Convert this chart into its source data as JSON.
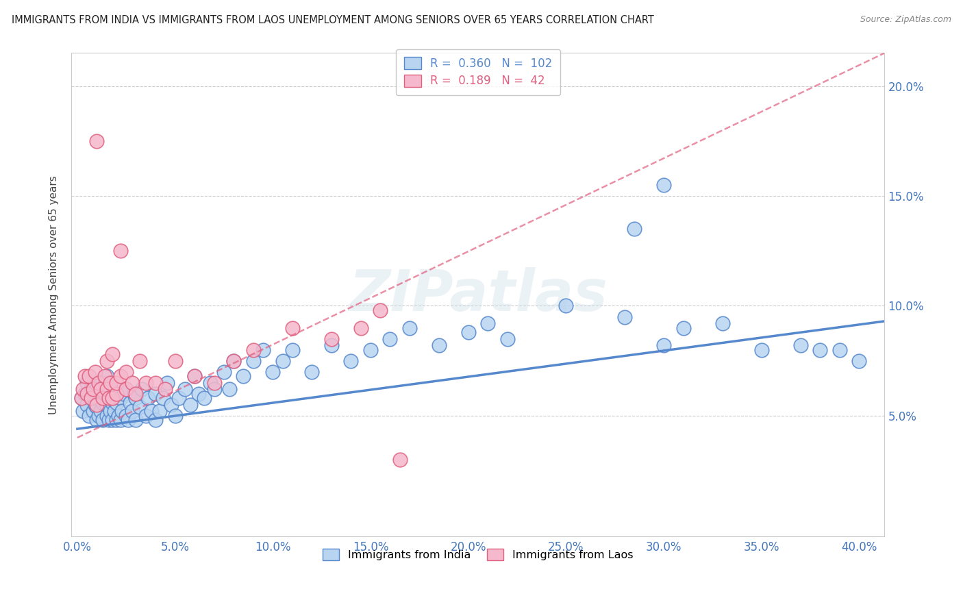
{
  "title": "IMMIGRANTS FROM INDIA VS IMMIGRANTS FROM LAOS UNEMPLOYMENT AMONG SENIORS OVER 65 YEARS CORRELATION CHART",
  "source": "Source: ZipAtlas.com",
  "ylabel": "Unemployment Among Seniors over 65 years",
  "xlim": [
    -0.003,
    0.413
  ],
  "ylim": [
    -0.005,
    0.215
  ],
  "xtick_vals": [
    0.0,
    0.05,
    0.1,
    0.15,
    0.2,
    0.25,
    0.3,
    0.35,
    0.4
  ],
  "ytick_vals": [
    0.05,
    0.1,
    0.15,
    0.2
  ],
  "india_color": "#b8d4f0",
  "india_edge": "#5588cc",
  "laos_color": "#f5b8cc",
  "laos_edge": "#e06080",
  "india_R": 0.36,
  "india_N": 102,
  "laos_R": 0.189,
  "laos_N": 42,
  "india_trend_x": [
    0.0,
    0.413
  ],
  "india_trend_y": [
    0.044,
    0.093
  ],
  "laos_trend_x": [
    0.0,
    0.413
  ],
  "laos_trend_y": [
    0.04,
    0.215
  ],
  "india_scatter_x": [
    0.002,
    0.003,
    0.004,
    0.005,
    0.005,
    0.006,
    0.007,
    0.007,
    0.008,
    0.008,
    0.009,
    0.009,
    0.01,
    0.01,
    0.01,
    0.01,
    0.011,
    0.011,
    0.012,
    0.012,
    0.013,
    0.013,
    0.014,
    0.014,
    0.015,
    0.015,
    0.015,
    0.016,
    0.016,
    0.017,
    0.017,
    0.018,
    0.018,
    0.019,
    0.019,
    0.02,
    0.02,
    0.021,
    0.021,
    0.022,
    0.022,
    0.023,
    0.024,
    0.025,
    0.025,
    0.026,
    0.027,
    0.028,
    0.029,
    0.03,
    0.03,
    0.032,
    0.033,
    0.035,
    0.036,
    0.038,
    0.04,
    0.04,
    0.042,
    0.044,
    0.046,
    0.048,
    0.05,
    0.052,
    0.055,
    0.058,
    0.06,
    0.062,
    0.065,
    0.068,
    0.07,
    0.075,
    0.078,
    0.08,
    0.085,
    0.09,
    0.095,
    0.1,
    0.105,
    0.11,
    0.12,
    0.13,
    0.14,
    0.15,
    0.16,
    0.17,
    0.185,
    0.2,
    0.21,
    0.22,
    0.25,
    0.28,
    0.3,
    0.31,
    0.33,
    0.35,
    0.37,
    0.38,
    0.39,
    0.4,
    0.3,
    0.285
  ],
  "india_scatter_y": [
    0.058,
    0.052,
    0.06,
    0.055,
    0.065,
    0.05,
    0.058,
    0.062,
    0.052,
    0.06,
    0.055,
    0.065,
    0.048,
    0.054,
    0.058,
    0.062,
    0.05,
    0.06,
    0.052,
    0.065,
    0.048,
    0.056,
    0.06,
    0.065,
    0.05,
    0.055,
    0.068,
    0.048,
    0.058,
    0.052,
    0.062,
    0.048,
    0.056,
    0.052,
    0.06,
    0.048,
    0.056,
    0.05,
    0.062,
    0.048,
    0.058,
    0.052,
    0.06,
    0.05,
    0.062,
    0.048,
    0.056,
    0.052,
    0.06,
    0.048,
    0.058,
    0.054,
    0.062,
    0.05,
    0.058,
    0.052,
    0.048,
    0.06,
    0.052,
    0.058,
    0.065,
    0.055,
    0.05,
    0.058,
    0.062,
    0.055,
    0.068,
    0.06,
    0.058,
    0.065,
    0.062,
    0.07,
    0.062,
    0.075,
    0.068,
    0.075,
    0.08,
    0.07,
    0.075,
    0.08,
    0.07,
    0.082,
    0.075,
    0.08,
    0.085,
    0.09,
    0.082,
    0.088,
    0.092,
    0.085,
    0.1,
    0.095,
    0.082,
    0.09,
    0.092,
    0.08,
    0.082,
    0.08,
    0.08,
    0.075,
    0.155,
    0.135
  ],
  "laos_scatter_x": [
    0.002,
    0.003,
    0.004,
    0.005,
    0.006,
    0.007,
    0.008,
    0.009,
    0.01,
    0.01,
    0.011,
    0.012,
    0.013,
    0.014,
    0.015,
    0.015,
    0.016,
    0.017,
    0.018,
    0.018,
    0.02,
    0.02,
    0.022,
    0.022,
    0.025,
    0.025,
    0.028,
    0.03,
    0.032,
    0.035,
    0.04,
    0.045,
    0.05,
    0.06,
    0.07,
    0.08,
    0.09,
    0.11,
    0.13,
    0.145,
    0.155,
    0.165
  ],
  "laos_scatter_y": [
    0.058,
    0.062,
    0.068,
    0.06,
    0.068,
    0.058,
    0.062,
    0.07,
    0.055,
    0.175,
    0.065,
    0.062,
    0.058,
    0.068,
    0.062,
    0.075,
    0.058,
    0.065,
    0.058,
    0.078,
    0.06,
    0.065,
    0.068,
    0.125,
    0.062,
    0.07,
    0.065,
    0.06,
    0.075,
    0.065,
    0.065,
    0.062,
    0.075,
    0.068,
    0.065,
    0.075,
    0.08,
    0.09,
    0.085,
    0.09,
    0.098,
    0.03
  ],
  "watermark": "ZIPatlas"
}
